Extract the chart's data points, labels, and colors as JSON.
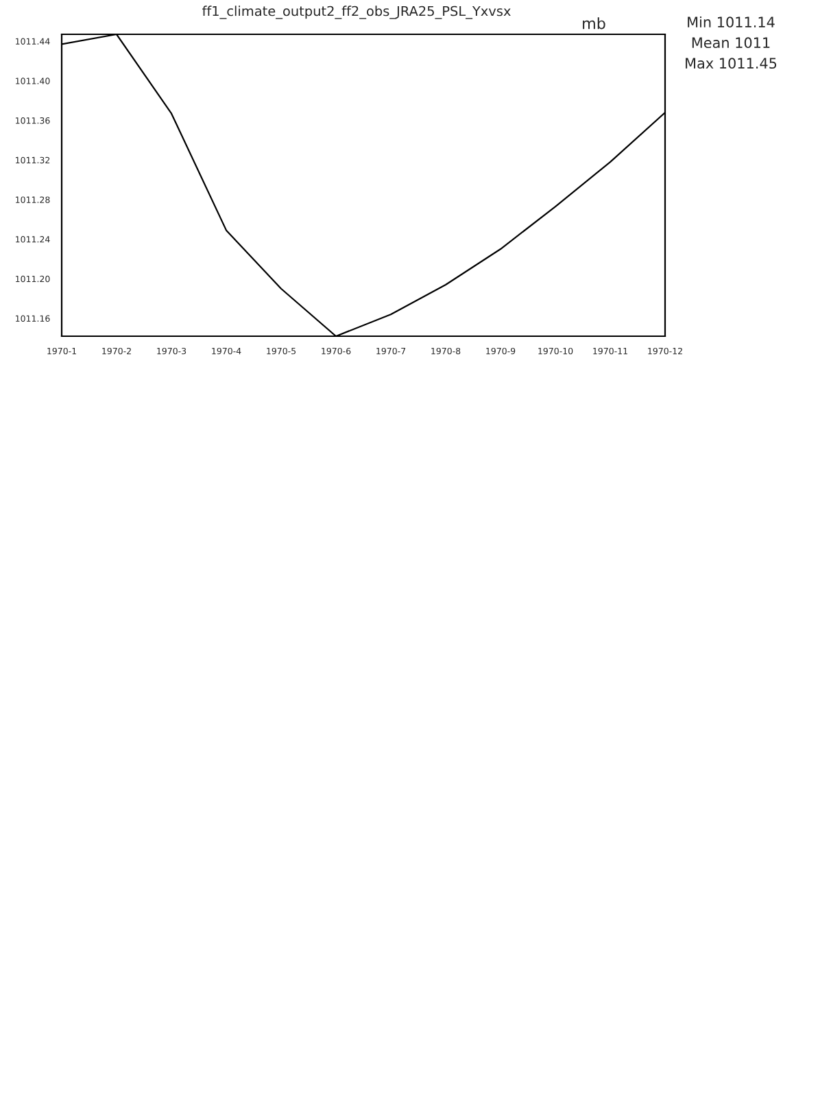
{
  "chart_data": {
    "type": "line",
    "title": "ff1_climate_output2_ff2_obs_JRA25_PSL_Yxvsx",
    "ylabel": "mb",
    "annotations": [
      "Min 1011.14",
      "Mean 1011",
      "Max 1011.45"
    ],
    "categories": [
      "1970-1",
      "1970-2",
      "1970-3",
      "1970-4",
      "1970-5",
      "1970-6",
      "1970-7",
      "1970-8",
      "1970-9",
      "1970-10",
      "1970-11",
      "1970-12"
    ],
    "series": [
      {
        "color": "#000000",
        "values": [
          1011.437,
          1011.447,
          1011.367,
          1011.249,
          1011.19,
          1011.142,
          1011.164,
          1011.194,
          1011.23,
          1011.273,
          1011.318,
          1011.368
        ]
      }
    ],
    "ylim": [
      1011.142,
      1011.447
    ],
    "yticks": [
      {
        "value": 1011.16,
        "label": "1011.16"
      },
      {
        "value": 1011.2,
        "label": "1011.20"
      },
      {
        "value": 1011.24,
        "label": "1011.24"
      },
      {
        "value": 1011.28,
        "label": "1011.28"
      },
      {
        "value": 1011.32,
        "label": "1011.32"
      },
      {
        "value": 1011.36,
        "label": "1011.36"
      },
      {
        "value": 1011.4,
        "label": "1011.40"
      },
      {
        "value": 1011.44,
        "label": "1011.44"
      }
    ],
    "grid": false,
    "legend": false,
    "marker": "none",
    "line_style": "solid"
  }
}
